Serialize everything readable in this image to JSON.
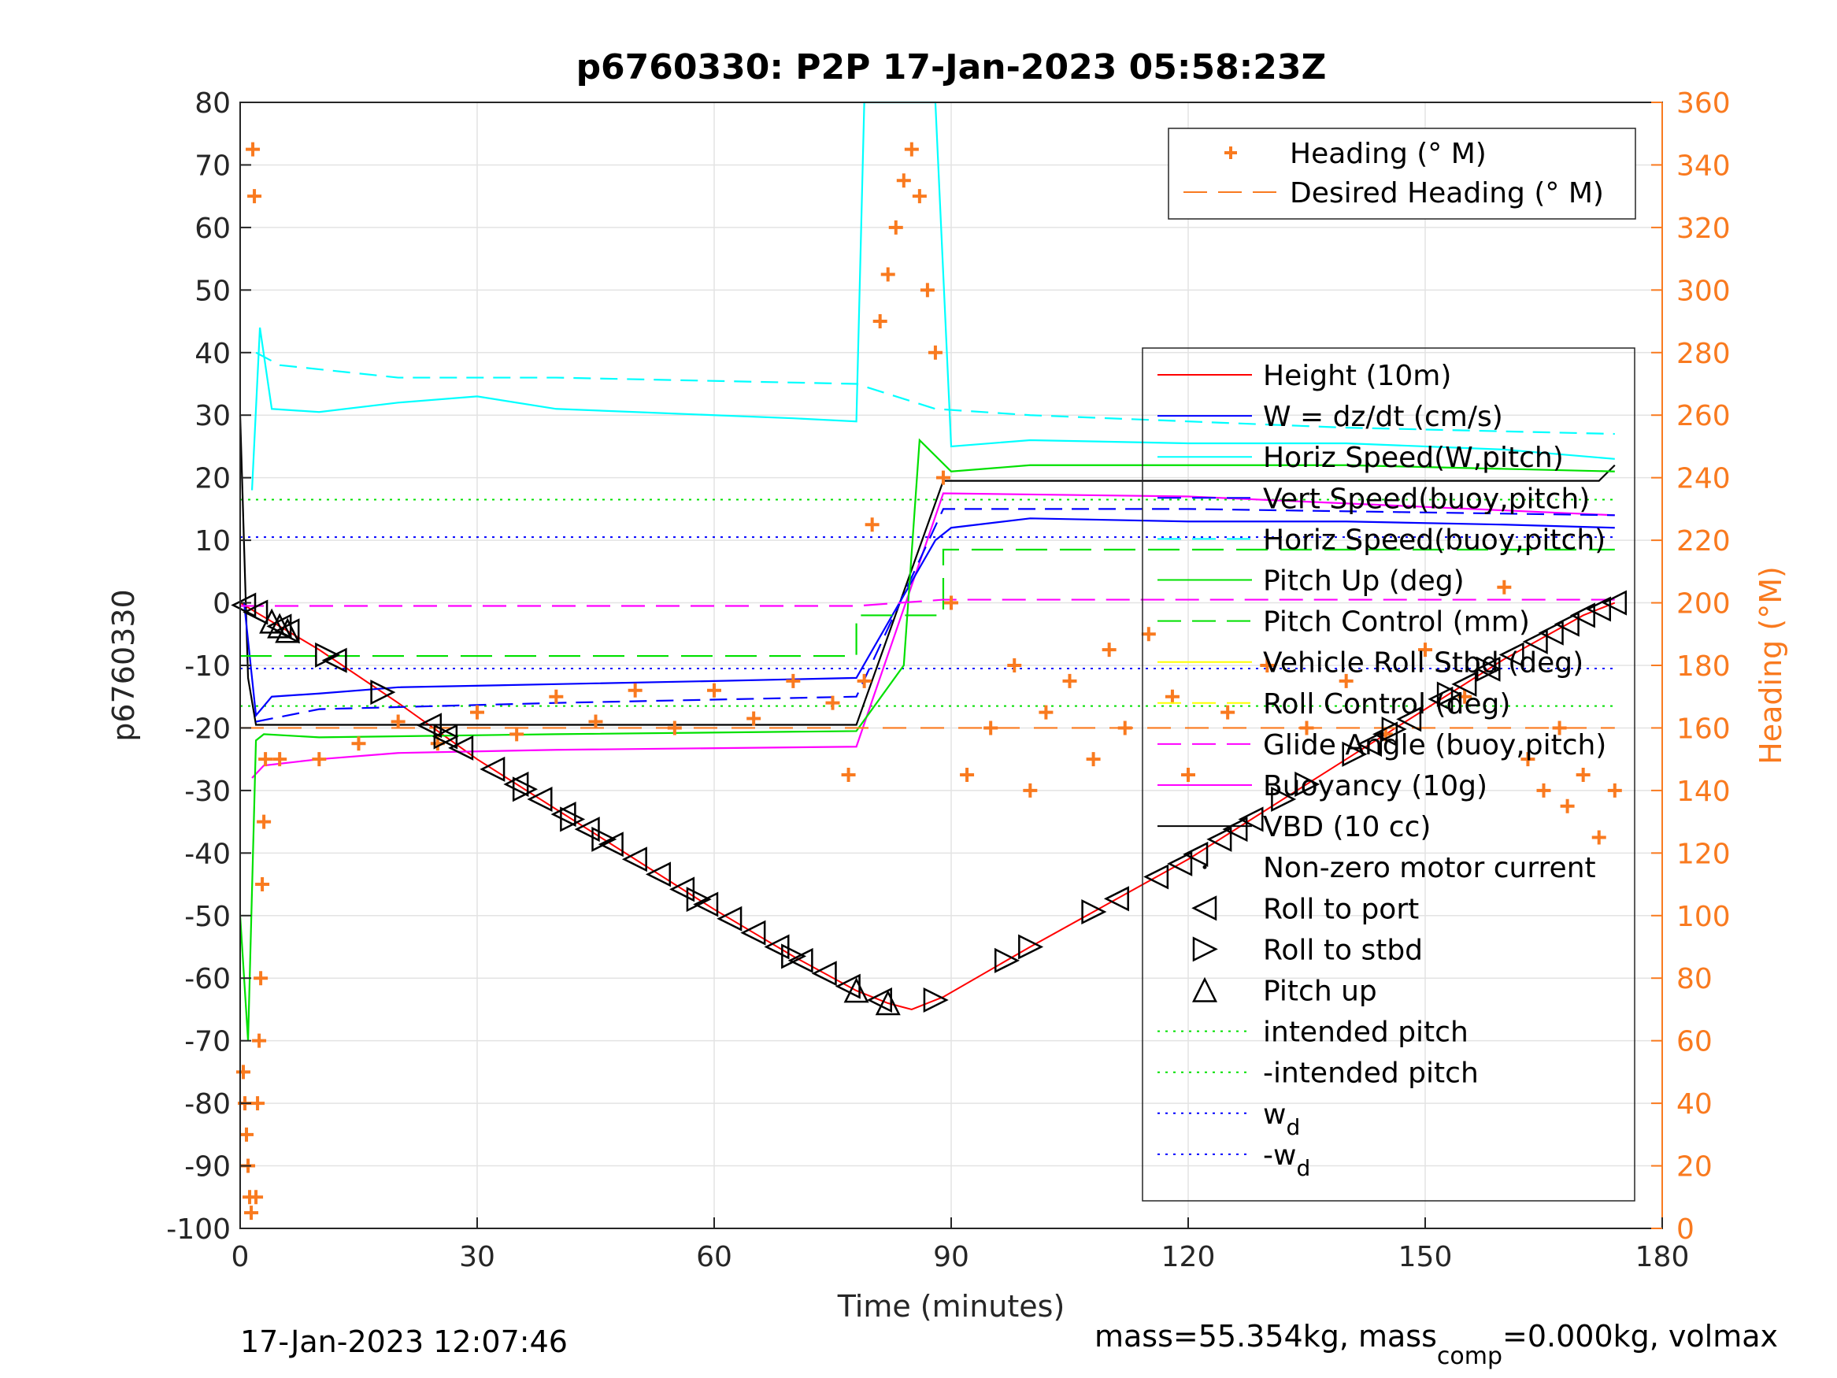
{
  "chart_data": {
    "type": "line",
    "title": "p6760330: P2P 17-Jan-2023 05:58:23Z",
    "xlabel": "Time (minutes)",
    "ylabel_left": "p6760330",
    "ylabel_right": "Heading (°M)",
    "xlim": [
      0,
      180
    ],
    "ylim_left": [
      -100,
      80
    ],
    "ylim_right": [
      0,
      360
    ],
    "xticks": [
      0,
      30,
      60,
      90,
      120,
      150,
      180
    ],
    "yticks_left": [
      -100,
      -90,
      -80,
      -70,
      -60,
      -50,
      -40,
      -30,
      -20,
      -10,
      0,
      10,
      20,
      30,
      40,
      50,
      60,
      70,
      80
    ],
    "yticks_right": [
      0,
      20,
      40,
      60,
      80,
      100,
      120,
      140,
      160,
      180,
      200,
      220,
      240,
      260,
      280,
      300,
      320,
      340,
      360
    ],
    "grid": true,
    "footer_left": "17-Jan-2023 12:07:46",
    "footer_right_prefix": "mass=55.354kg, mass",
    "footer_right_sub": "comp",
    "footer_right_suffix": "=0.000kg, volmax",
    "legend_heading": [
      {
        "label": "Heading (° M)",
        "color": "#f97a1f",
        "style": "plus"
      },
      {
        "label": "Desired Heading (° M)",
        "color": "#f97a1f",
        "style": "dashed"
      }
    ],
    "legend_main": [
      {
        "label": "Height (10m)",
        "color": "#ff0000",
        "style": "solid"
      },
      {
        "label": "W = dz/dt (cm/s)",
        "color": "#0000ff",
        "style": "solid"
      },
      {
        "label": "Horiz Speed(W,pitch)",
        "color": "#00ffff",
        "style": "solid"
      },
      {
        "label": "Vert Speed(buoy,pitch)",
        "color": "#0000ff",
        "style": "dashed"
      },
      {
        "label": "Horiz Speed(buoy,pitch)",
        "color": "#00ffff",
        "style": "dashed"
      },
      {
        "label": "Pitch Up (deg)",
        "color": "#00e000",
        "style": "solid"
      },
      {
        "label": "Pitch Control (mm)",
        "color": "#00e000",
        "style": "dashed"
      },
      {
        "label": "Vehicle Roll Stbd (deg)",
        "color": "#ffff00",
        "style": "solid"
      },
      {
        "label": "Roll Control (deg)",
        "color": "#ffff00",
        "style": "dashed"
      },
      {
        "label": "Glide Angle (buoy,pitch)",
        "color": "#ff00ff",
        "style": "dashed"
      },
      {
        "label": "Buoyancy (10g)",
        "color": "#ff00ff",
        "style": "solid"
      },
      {
        "label": "VBD (10 cc)",
        "color": "#000000",
        "style": "solid"
      },
      {
        "label": "Non-zero motor current",
        "color": "#000000",
        "style": "dot"
      },
      {
        "label": "Roll to port",
        "color": "#000000",
        "style": "tri-left"
      },
      {
        "label": "Roll to stbd",
        "color": "#000000",
        "style": "tri-right"
      },
      {
        "label": "Pitch up",
        "color": "#000000",
        "style": "tri-up"
      },
      {
        "label": "intended pitch",
        "color": "#00e000",
        "style": "dotted"
      },
      {
        "label": "-intended pitch",
        "color": "#00e000",
        "style": "dotted"
      },
      {
        "label": "w",
        "sub": "d",
        "color": "#0000ff",
        "style": "dotted"
      },
      {
        "label": "-w",
        "sub": "d",
        "color": "#0000ff",
        "style": "dotted"
      }
    ],
    "series": [
      {
        "name": "Height (10m)",
        "color": "#ff0000",
        "x": [
          0,
          10,
          20,
          30,
          40,
          50,
          60,
          70,
          78,
          82,
          85,
          89,
          100,
          110,
          120,
          130,
          140,
          150,
          160,
          170,
          174
        ],
        "y": [
          0,
          -7.5,
          -16,
          -25,
          -33,
          -41,
          -49,
          -56.5,
          -62,
          -64,
          -65,
          -63,
          -55,
          -48,
          -41,
          -33,
          -25,
          -17,
          -9,
          -2,
          0
        ]
      },
      {
        "name": "VBD (10 cc)",
        "color": "#000000",
        "x": [
          0,
          1,
          2,
          78,
          89,
          172,
          174
        ],
        "y": [
          30,
          -12,
          -19.5,
          -19.5,
          19.5,
          19.5,
          22
        ]
      },
      {
        "name": "Buoyancy (10g)",
        "color": "#ff00ff",
        "x": [
          1.5,
          3,
          10,
          20,
          40,
          78,
          89,
          120,
          174
        ],
        "y": [
          -28,
          -26,
          -25,
          -24,
          -23.5,
          -23,
          17.5,
          17,
          14
        ]
      },
      {
        "name": "Horiz Speed(W,pitch)",
        "color": "#00ffff",
        "x": [
          1.5,
          2.5,
          4,
          10,
          20,
          30,
          40,
          50,
          60,
          70,
          78,
          79,
          88,
          90,
          100,
          120,
          140,
          160,
          174
        ],
        "y": [
          18,
          44,
          31,
          30.5,
          32,
          33,
          31,
          30.5,
          30,
          29.5,
          29,
          80,
          80,
          25,
          26,
          25.5,
          25.5,
          24.5,
          23
        ]
      },
      {
        "name": "W = dz/dt (cm/s)",
        "color": "#0000ff",
        "x": [
          0.5,
          2,
          4,
          10,
          20,
          40,
          60,
          78,
          88,
          90,
          100,
          120,
          140,
          160,
          174
        ],
        "y": [
          0,
          -18,
          -15,
          -14.5,
          -13.5,
          -13,
          -12.5,
          -12,
          10,
          12,
          13.5,
          13,
          13,
          12.5,
          12
        ]
      },
      {
        "name": "Vert Speed(buoy,pitch)",
        "color": "#0000ff",
        "x": [
          2,
          10,
          40,
          78,
          89,
          120,
          174
        ],
        "y": [
          -19,
          -17,
          -16,
          -15,
          15,
          15,
          14
        ]
      },
      {
        "name": "Horiz Speed(buoy,pitch)",
        "color": "#00ffff",
        "x": [
          2,
          5,
          20,
          40,
          78,
          88,
          100,
          140,
          174
        ],
        "y": [
          40,
          38,
          36,
          36,
          35,
          31,
          30,
          28,
          27
        ]
      },
      {
        "name": "Pitch Up (deg)",
        "color": "#00e000",
        "x": [
          0,
          1,
          2,
          3,
          10,
          40,
          78,
          84,
          86,
          90,
          100,
          140,
          174
        ],
        "y": [
          -50,
          -70,
          -22,
          -21,
          -21.5,
          -21,
          -20.5,
          -10,
          26,
          21,
          22,
          22,
          21
        ]
      },
      {
        "name": "Pitch Control (mm)",
        "color": "#00e000",
        "x": [
          0,
          78,
          78,
          89,
          89,
          174
        ],
        "y": [
          -8.5,
          -8.5,
          -2,
          -2,
          8.5,
          8.5
        ]
      },
      {
        "name": "Glide Angle (buoy,pitch)",
        "color": "#ff00ff",
        "x": [
          0,
          78,
          89,
          174
        ],
        "y": [
          -0.5,
          -0.5,
          0.5,
          0.5
        ]
      },
      {
        "name": "Desired Heading (° M)",
        "color": "#f97a1f",
        "x": [
          0,
          174
        ],
        "y_right": [
          160,
          160
        ]
      }
    ],
    "reference_lines": [
      {
        "name": "intended pitch",
        "value": 16.5,
        "color": "#00e000"
      },
      {
        "name": "-intended pitch",
        "value": -16.5,
        "color": "#00e000"
      },
      {
        "name": "w_d",
        "value": 10.5,
        "color": "#0000ff"
      },
      {
        "name": "-w_d",
        "value": -10.5,
        "color": "#0000ff"
      }
    ],
    "roll_port_x": [
      0.5,
      2,
      5,
      6,
      12,
      24,
      26,
      28,
      32,
      35,
      38,
      41,
      44,
      47,
      50,
      53,
      56,
      59,
      62,
      65,
      68,
      71,
      74,
      77,
      81,
      111,
      116,
      119,
      121,
      124,
      126,
      128,
      143,
      145,
      148,
      152,
      155,
      158,
      161,
      164,
      166,
      168,
      170,
      172,
      174
    ],
    "roll_stbd_x": [
      11,
      18,
      26,
      36,
      42,
      46,
      58,
      70,
      88,
      97,
      100,
      108,
      132,
      135,
      141,
      146,
      153,
      158
    ],
    "pitch_up_x": [
      4,
      5,
      6,
      78,
      82
    ],
    "heading_points": {
      "x": [
        0.4,
        0.6,
        0.8,
        1.0,
        1.2,
        1.4,
        1.6,
        1.8,
        2.0,
        2.2,
        2.4,
        2.6,
        2.8,
        3.0,
        3.2,
        5,
        10,
        15,
        20,
        25,
        30,
        35,
        40,
        45,
        50,
        55,
        60,
        65,
        70,
        75,
        77,
        79,
        80,
        81,
        82,
        83,
        84,
        85,
        86,
        87,
        88,
        89,
        90,
        92,
        95,
        98,
        100,
        102,
        105,
        108,
        110,
        112,
        115,
        118,
        120,
        125,
        130,
        135,
        140,
        145,
        150,
        155,
        160,
        163,
        165,
        167,
        168,
        170,
        172,
        174
      ],
      "y": [
        50,
        40,
        30,
        20,
        10,
        5,
        345,
        330,
        10,
        40,
        60,
        80,
        110,
        130,
        150,
        150,
        150,
        155,
        162,
        155,
        165,
        158,
        170,
        162,
        172,
        160,
        172,
        163,
        175,
        168,
        145,
        175,
        225,
        290,
        305,
        320,
        335,
        345,
        330,
        300,
        280,
        240,
        200,
        145,
        160,
        180,
        140,
        165,
        175,
        150,
        185,
        160,
        190,
        170,
        145,
        165,
        180,
        160,
        175,
        158,
        185,
        170,
        205,
        150,
        140,
        160,
        135,
        145,
        125,
        140
      ]
    }
  }
}
